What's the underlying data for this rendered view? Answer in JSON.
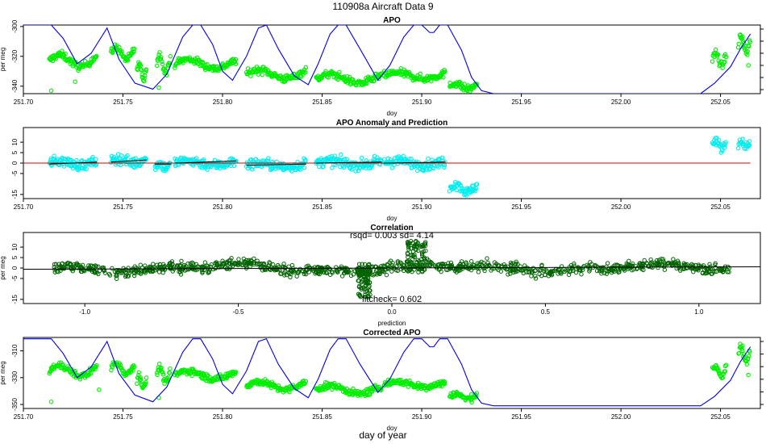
{
  "header": {
    "title": "110908a    Aircraft Data 9",
    "xlabel_main": "day of year"
  },
  "colors": {
    "green": "#00ee00",
    "cyan": "#00eeee",
    "darkgreen": "#006400",
    "blue": "#0000ee",
    "red": "#dd0000",
    "black": "#000000"
  },
  "chart_data": [
    {
      "id": "apo",
      "type": "scatter",
      "title": "APO",
      "xlabel": "doy",
      "ylabel": "per meg",
      "xlim": [
        251.7,
        252.07
      ],
      "ylim": [
        -345,
        -299
      ],
      "xticks": [
        251.7,
        251.75,
        251.8,
        251.85,
        251.9,
        251.95,
        252.0,
        252.05
      ],
      "xtick_labels": [
        "251.70",
        "251.75",
        "251.80",
        "251.85",
        "251.90",
        "251.95",
        "252.00",
        "252.05"
      ],
      "yticks": [
        -300,
        -320,
        -340
      ],
      "ytick_labels": [
        "-300",
        "-320",
        "-340"
      ],
      "segments": [
        {
          "x0": 251.713,
          "x1": 251.737,
          "center": -323,
          "amp": 4,
          "noise": 2.5
        },
        {
          "x0": 251.744,
          "x1": 251.756,
          "center": -318,
          "amp": 4,
          "noise": 2.5
        },
        {
          "x0": 251.757,
          "x1": 251.762,
          "center": -330,
          "amp": 5,
          "noise": 2.5
        },
        {
          "x0": 251.767,
          "x1": 251.774,
          "center": -325,
          "amp": 6,
          "noise": 2.5
        },
        {
          "x0": 251.776,
          "x1": 251.807,
          "center": -325,
          "amp": 3,
          "noise": 2.5
        },
        {
          "x0": 251.812,
          "x1": 251.842,
          "center": -332,
          "amp": 3,
          "noise": 2.5
        },
        {
          "x0": 251.847,
          "x1": 251.88,
          "center": -335,
          "amp": 3,
          "noise": 2.5
        },
        {
          "x0": 251.881,
          "x1": 251.912,
          "center": -333,
          "amp": 2,
          "noise": 2.5
        },
        {
          "x0": 251.914,
          "x1": 251.928,
          "center": -340,
          "amp": 2,
          "noise": 2.5
        },
        {
          "x0": 252.046,
          "x1": 252.053,
          "center": -322,
          "amp": 4,
          "noise": 2.5
        },
        {
          "x0": 252.059,
          "x1": 252.065,
          "center": -312,
          "amp": 6,
          "noise": 3
        }
      ],
      "outliers": [
        [
          251.714,
          -343
        ],
        [
          251.726,
          -337
        ],
        [
          251.768,
          -341
        ],
        [
          252.064,
          -326
        ]
      ],
      "line_x": [
        251.7,
        251.705,
        251.714,
        251.72,
        251.727,
        251.734,
        251.742,
        251.748,
        251.756,
        251.765,
        251.772,
        251.78,
        251.785,
        251.789,
        251.795,
        251.8,
        251.805,
        251.812,
        251.818,
        251.822,
        251.828,
        251.836,
        251.843,
        251.848,
        251.854,
        251.858,
        251.862,
        251.869,
        251.878,
        251.884,
        251.891,
        251.896,
        251.9,
        251.904,
        251.906,
        251.909,
        251.913,
        251.92,
        251.925,
        251.93,
        251.936,
        252.04,
        252.047,
        252.055,
        252.06,
        252.065
      ],
      "line_y": [
        -299,
        -299,
        -299,
        -308,
        -325,
        -318,
        -301,
        -322,
        -338,
        -342,
        -332,
        -307,
        -299,
        -299,
        -312,
        -330,
        -336,
        -320,
        -301,
        -299,
        -315,
        -333,
        -339,
        -325,
        -305,
        -299,
        -299,
        -315,
        -336,
        -326,
        -307,
        -299,
        -299,
        -304,
        -304,
        -299,
        -299,
        -316,
        -334,
        -343,
        -345,
        -345,
        -338,
        -327,
        -315,
        -305
      ]
    },
    {
      "id": "anomaly",
      "type": "scatter",
      "title": "APO Anomaly and Prediction",
      "xlabel": "doy",
      "ylabel": "",
      "xlim": [
        251.7,
        252.07
      ],
      "ylim": [
        -17,
        17
      ],
      "xticks": [
        251.7,
        251.75,
        251.8,
        251.85,
        251.9,
        251.95,
        252.0,
        252.05
      ],
      "xtick_labels": [
        "251.70",
        "251.75",
        "251.80",
        "251.85",
        "251.90",
        "251.95",
        "252.00",
        "252.05"
      ],
      "yticks": [
        10,
        5,
        0,
        -5,
        -15
      ],
      "ytick_labels": [
        "10",
        "5",
        "0",
        "-5",
        "-15"
      ],
      "segments": [
        {
          "x0": 251.713,
          "x1": 251.737,
          "center": 0,
          "amp": 1,
          "noise": 2.5
        },
        {
          "x0": 251.744,
          "x1": 251.762,
          "center": 1,
          "amp": 1,
          "noise": 2.5
        },
        {
          "x0": 251.766,
          "x1": 251.774,
          "center": -1,
          "amp": 1,
          "noise": 2.5
        },
        {
          "x0": 251.776,
          "x1": 251.807,
          "center": 0,
          "amp": 1,
          "noise": 2.5
        },
        {
          "x0": 251.812,
          "x1": 251.842,
          "center": -1,
          "amp": 1,
          "noise": 2.5
        },
        {
          "x0": 251.847,
          "x1": 251.88,
          "center": 0,
          "amp": 1,
          "noise": 2.5
        },
        {
          "x0": 251.881,
          "x1": 251.912,
          "center": 0,
          "amp": 1,
          "noise": 2.5
        },
        {
          "x0": 251.914,
          "x1": 251.928,
          "center": -12,
          "amp": 2,
          "noise": 2.5
        },
        {
          "x0": 252.046,
          "x1": 252.053,
          "center": 9,
          "amp": 2,
          "noise": 2.5
        },
        {
          "x0": 252.059,
          "x1": 252.065,
          "center": 9,
          "amp": 1,
          "noise": 2
        }
      ],
      "outliers": [],
      "pred_x": [
        251.713,
        251.737,
        251.744,
        251.762,
        251.766,
        251.774,
        251.776,
        251.807,
        251.812,
        251.842,
        251.847,
        251.88,
        251.881,
        251.912
      ],
      "pred_y": [
        -0.5,
        0.5,
        0.5,
        1.5,
        -0.5,
        -0.5,
        0,
        1,
        -1,
        -0.5,
        0,
        0.5,
        0,
        0.5
      ],
      "redline_x": [
        251.7,
        252.065
      ],
      "redline_y": [
        0,
        0
      ]
    },
    {
      "id": "correlation",
      "type": "scatter",
      "title": "Correlation",
      "xlabel": "prediction",
      "ylabel": "per meg",
      "xlim": [
        -1.2,
        1.2
      ],
      "ylim": [
        -17,
        17
      ],
      "xticks": [
        -1.0,
        -0.5,
        0.0,
        0.5,
        1.0
      ],
      "xtick_labels": [
        "-1.0",
        "-0.5",
        "0.0",
        "0.5",
        "1.0"
      ],
      "yticks": [
        10,
        5,
        0,
        -5,
        -15
      ],
      "ytick_labels": [
        "10",
        "5",
        "0",
        "-5",
        "-15"
      ],
      "rsqd_label": "rsqd= 0.003 sd= 4.14",
      "fitcheck_label": "fitcheck= 0.602",
      "fit_x": [
        -1.2,
        1.2
      ],
      "fit_y": [
        -0.6,
        0.6
      ],
      "band_x": [
        -1.1,
        1.1
      ],
      "band_center": 0,
      "band_noise": 3,
      "vertical_spike": {
        "x": -0.09,
        "y0": -14,
        "y1": 2
      },
      "vertical_spike2": {
        "x": 0.08,
        "y0": -2,
        "y1": 13
      }
    },
    {
      "id": "corrected",
      "type": "scatter",
      "title": "Corrected APO",
      "xlabel": "doy",
      "ylabel": "per meg",
      "xlim": [
        251.7,
        252.07
      ],
      "ylim": [
        -353,
        -300
      ],
      "xticks": [
        251.7,
        251.75,
        251.8,
        251.85,
        251.9,
        251.95,
        252.0,
        252.05
      ],
      "xtick_labels": [
        "251.70",
        "251.75",
        "251.80",
        "251.85",
        "251.90",
        "251.95",
        "252.00",
        "252.05"
      ],
      "yticks": [
        -310,
        -330,
        -350
      ],
      "ytick_labels": [
        "-310",
        "-330",
        "-350"
      ],
      "segments": [
        {
          "x0": 251.713,
          "x1": 251.737,
          "center": -325,
          "amp": 4,
          "noise": 2.5
        },
        {
          "x0": 251.744,
          "x1": 251.756,
          "center": -323,
          "amp": 4,
          "noise": 2.5
        },
        {
          "x0": 251.757,
          "x1": 251.762,
          "center": -333,
          "amp": 5,
          "noise": 2.5
        },
        {
          "x0": 251.767,
          "x1": 251.774,
          "center": -328,
          "amp": 6,
          "noise": 2.5
        },
        {
          "x0": 251.776,
          "x1": 251.807,
          "center": -328,
          "amp": 3,
          "noise": 2.5
        },
        {
          "x0": 251.812,
          "x1": 251.842,
          "center": -336,
          "amp": 3,
          "noise": 2.5
        },
        {
          "x0": 251.847,
          "x1": 251.88,
          "center": -339,
          "amp": 3,
          "noise": 2.5
        },
        {
          "x0": 251.881,
          "x1": 251.912,
          "center": -335,
          "amp": 2,
          "noise": 2.5
        },
        {
          "x0": 251.914,
          "x1": 251.928,
          "center": -344,
          "amp": 2,
          "noise": 2.5
        },
        {
          "x0": 252.046,
          "x1": 252.053,
          "center": -325,
          "amp": 4,
          "noise": 2.5
        },
        {
          "x0": 252.059,
          "x1": 252.065,
          "center": -313,
          "amp": 6,
          "noise": 3
        }
      ],
      "outliers": [
        [
          251.714,
          -348
        ],
        [
          251.738,
          -339
        ],
        [
          251.768,
          -345
        ],
        [
          252.064,
          -328
        ]
      ],
      "line_x": [
        251.7,
        251.705,
        251.714,
        251.72,
        251.727,
        251.734,
        251.742,
        251.748,
        251.756,
        251.765,
        251.772,
        251.78,
        251.785,
        251.789,
        251.795,
        251.8,
        251.805,
        251.812,
        251.818,
        251.822,
        251.828,
        251.836,
        251.843,
        251.848,
        251.854,
        251.858,
        251.862,
        251.869,
        251.878,
        251.884,
        251.891,
        251.896,
        251.9,
        251.904,
        251.906,
        251.909,
        251.913,
        251.92,
        251.925,
        251.93,
        251.936,
        252.04,
        252.047,
        252.055,
        252.06,
        252.065
      ],
      "line_y": [
        -301,
        -301,
        -301,
        -312,
        -330,
        -322,
        -303,
        -327,
        -343,
        -348,
        -337,
        -311,
        -301,
        -301,
        -316,
        -335,
        -342,
        -325,
        -303,
        -301,
        -320,
        -338,
        -345,
        -331,
        -309,
        -301,
        -301,
        -320,
        -341,
        -331,
        -311,
        -301,
        -301,
        -307,
        -307,
        -301,
        -301,
        -320,
        -339,
        -349,
        -351,
        -351,
        -344,
        -332,
        -318,
        -307
      ]
    }
  ]
}
